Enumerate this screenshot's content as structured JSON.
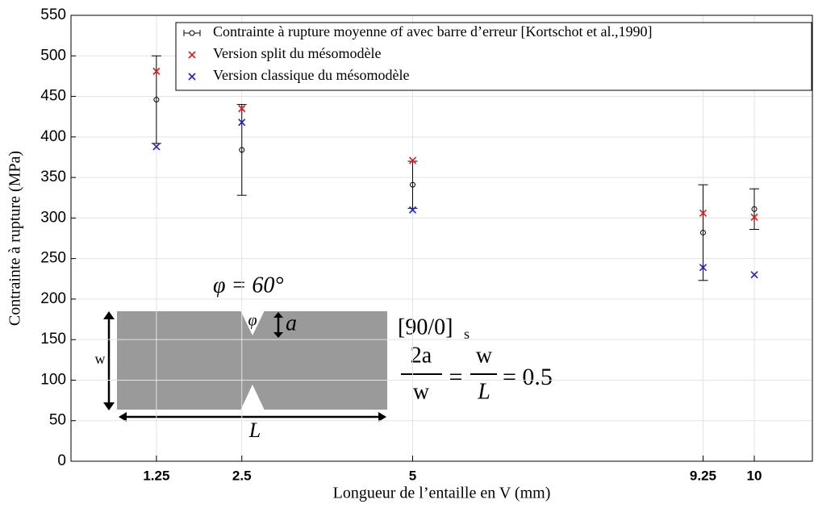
{
  "chart_data": {
    "type": "scatter",
    "x_label": "Longueur de l’entaille en V (mm)",
    "y_label": "Contrainte à rupture (MPa)",
    "x": [
      1.25,
      2.5,
      5,
      9.25,
      10
    ],
    "xlim": [
      0,
      10.85
    ],
    "xticks": [
      1.25,
      2.5,
      5,
      9.25,
      10
    ],
    "ylim": [
      0,
      550
    ],
    "yticks": [
      0,
      50,
      100,
      150,
      200,
      250,
      300,
      350,
      400,
      450,
      500,
      550
    ],
    "grid": true,
    "legend": "upper right",
    "series": [
      {
        "name": "Contrainte à rupture moyenne σf avec barre d’erreur [Kortschot et al.,1990]",
        "color": "#000000",
        "marker": "o",
        "values": [
          446,
          384,
          341,
          282,
          311
        ],
        "errors": [
          54,
          56,
          29,
          59,
          25
        ]
      },
      {
        "name": "Version split du mésomodèle",
        "color": "#e41a1c",
        "marker": "x",
        "values": [
          481,
          435,
          371,
          306,
          301
        ]
      },
      {
        "name": "Version classique du mésomodèle",
        "color": "#1f1fd0",
        "marker": "x",
        "values": [
          388,
          418,
          310,
          239,
          230
        ]
      }
    ],
    "annotations": [
      "φ = 60°",
      "φ",
      "a",
      "[90/0]",
      "s",
      "2a",
      "w",
      "=",
      "w",
      "L",
      "= 0.5",
      "w",
      "L"
    ]
  }
}
